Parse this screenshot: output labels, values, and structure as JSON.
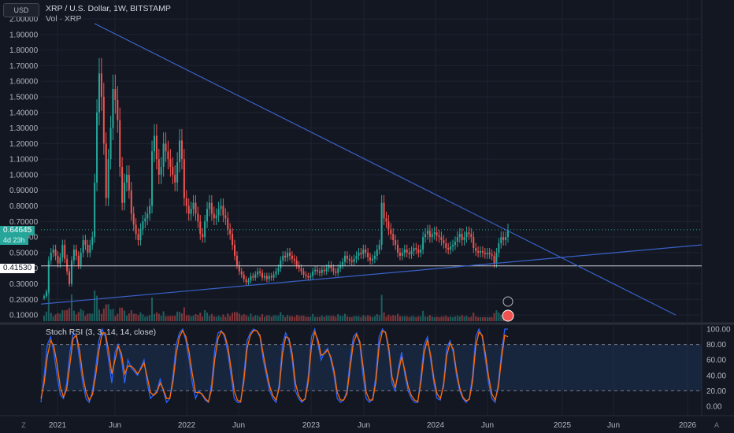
{
  "header": {
    "currency_button": "USD",
    "symbol_title": "XRP / U.S. Dollar, 1W, BITSTAMP",
    "volume_legend": "Vol · XRP",
    "rsi_legend": "Stoch RSI (3, 3, 14, 14, close)"
  },
  "price_labels": {
    "current_price": "0.64645",
    "countdown": "4d 23h",
    "horizontal_line_price": "0.41530"
  },
  "corner": {
    "z_label": "Z",
    "a_label": "A"
  },
  "colors": {
    "background": "#131722",
    "up": "#26a69a",
    "down": "#ef5350",
    "trendline": "#3861c6",
    "k_line": "#2962ff",
    "d_line": "#ff6d00",
    "band_fill": "#1e3a5f"
  },
  "chart_data": [
    {
      "type": "candlestick",
      "title": "XRP / U.S. Dollar, 1W, BITSTAMP",
      "ylim": [
        0.05,
        2.0
      ],
      "y_ticks": [
        "2.00000",
        "1.90000",
        "1.80000",
        "1.70000",
        "1.60000",
        "1.50000",
        "1.40000",
        "1.30000",
        "1.20000",
        "1.10000",
        "1.00000",
        "0.90000",
        "0.80000",
        "0.70000",
        "0.60000",
        "0.50000",
        "0.40000",
        "0.30000",
        "0.20000",
        "0.10000"
      ],
      "x_ticks": [
        "2021",
        "Jun",
        "2022",
        "Jun",
        "2023",
        "Jun",
        "2024",
        "Jun",
        "2025",
        "Jun",
        "2026"
      ],
      "close_series": [
        0.22,
        0.25,
        0.45,
        0.5,
        0.52,
        0.48,
        0.43,
        0.47,
        0.55,
        0.46,
        0.38,
        0.3,
        0.45,
        0.52,
        0.48,
        0.42,
        0.5,
        0.58,
        0.55,
        0.5,
        0.55,
        0.6,
        0.95,
        1.4,
        1.65,
        1.5,
        1.2,
        0.85,
        1.1,
        1.3,
        1.55,
        1.48,
        1.35,
        1.05,
        0.82,
        0.95,
        1.0,
        0.9,
        0.75,
        0.68,
        0.62,
        0.58,
        0.65,
        0.7,
        0.72,
        0.75,
        0.8,
        1.15,
        1.25,
        1.1,
        1.0,
        1.05,
        1.2,
        1.15,
        1.1,
        1.05,
        1.0,
        0.95,
        1.08,
        1.22,
        1.1,
        0.85,
        0.8,
        0.75,
        0.78,
        0.82,
        0.75,
        0.7,
        0.62,
        0.6,
        0.7,
        0.78,
        0.82,
        0.75,
        0.72,
        0.74,
        0.78,
        0.8,
        0.74,
        0.72,
        0.65,
        0.62,
        0.55,
        0.48,
        0.42,
        0.38,
        0.36,
        0.33,
        0.31,
        0.32,
        0.35,
        0.34,
        0.36,
        0.38,
        0.37,
        0.34,
        0.35,
        0.33,
        0.35,
        0.34,
        0.36,
        0.38,
        0.4,
        0.45,
        0.48,
        0.47,
        0.5,
        0.48,
        0.46,
        0.45,
        0.42,
        0.4,
        0.38,
        0.36,
        0.35,
        0.34,
        0.35,
        0.38,
        0.39,
        0.38,
        0.37,
        0.39,
        0.38,
        0.4,
        0.42,
        0.4,
        0.38,
        0.37,
        0.4,
        0.42,
        0.44,
        0.48,
        0.46,
        0.45,
        0.44,
        0.46,
        0.48,
        0.5,
        0.49,
        0.52,
        0.5,
        0.47,
        0.45,
        0.46,
        0.48,
        0.52,
        0.55,
        0.82,
        0.72,
        0.7,
        0.65,
        0.62,
        0.58,
        0.55,
        0.5,
        0.48,
        0.5,
        0.52,
        0.5,
        0.49,
        0.51,
        0.53,
        0.52,
        0.5,
        0.52,
        0.6,
        0.62,
        0.64,
        0.6,
        0.62,
        0.63,
        0.61,
        0.6,
        0.58,
        0.56,
        0.53,
        0.52,
        0.54,
        0.55,
        0.57,
        0.6,
        0.62,
        0.58,
        0.6,
        0.63,
        0.62,
        0.6,
        0.53,
        0.51,
        0.5,
        0.51,
        0.5,
        0.49,
        0.5,
        0.49,
        0.48,
        0.43,
        0.5,
        0.56,
        0.6,
        0.58,
        0.6,
        0.64645
      ],
      "horizontal_line": 0.4153,
      "trendline_upper": [
        [
          0.0,
          2.0
        ],
        [
          1.0,
          0.5
        ]
      ],
      "trendline_lower": [
        [
          0.0,
          0.17
        ],
        [
          1.0,
          0.55
        ]
      ]
    },
    {
      "type": "line",
      "title": "Stoch RSI (3, 3, 14, 14, close)",
      "ylim": [
        0,
        100
      ],
      "y_ticks": [
        "100.00",
        "80.00",
        "60.00",
        "40.00",
        "20.00",
        "0.00"
      ],
      "band": [
        20,
        80
      ],
      "series": [
        {
          "name": "",
          "values": [
            5,
            40,
            80,
            90,
            70,
            40,
            15,
            10,
            30,
            70,
            95,
            90,
            60,
            30,
            10,
            5,
            20,
            50,
            85,
            100,
            90,
            60,
            30,
            70,
            80,
            60,
            30,
            60,
            50,
            45,
            40,
            50,
            60,
            30,
            10,
            15,
            20,
            35,
            20,
            5,
            10,
            40,
            80,
            95,
            100,
            85,
            60,
            30,
            10,
            20,
            15,
            8,
            5,
            30,
            75,
            95,
            98,
            90,
            70,
            40,
            10,
            5,
            5,
            40,
            85,
            95,
            100,
            98,
            90,
            60,
            40,
            20,
            10,
            5,
            30,
            80,
            95,
            85,
            60,
            20,
            10,
            5,
            10,
            40,
            90,
            100,
            80,
            60,
            70,
            75,
            60,
            40,
            10,
            5,
            8,
            20,
            60,
            90,
            95,
            80,
            40,
            10,
            5,
            10,
            40,
            90,
            100,
            95,
            70,
            30,
            20,
            50,
            70,
            40,
            20,
            10,
            5,
            5,
            40,
            80,
            90,
            60,
            30,
            10,
            8,
            30,
            75,
            85,
            70,
            40,
            20,
            10,
            5,
            10,
            40,
            90,
            100,
            90,
            60,
            30,
            10,
            5,
            30,
            70,
            100,
            100
          ]
        },
        {
          "name": "",
          "values": [
            10,
            30,
            65,
            85,
            78,
            55,
            25,
            12,
            22,
            55,
            88,
            92,
            72,
            40,
            18,
            8,
            15,
            40,
            72,
            95,
            95,
            72,
            42,
            60,
            78,
            68,
            42,
            52,
            52,
            48,
            42,
            48,
            56,
            38,
            18,
            14,
            18,
            30,
            22,
            10,
            10,
            32,
            68,
            90,
            98,
            90,
            70,
            42,
            18,
            18,
            16,
            10,
            6,
            22,
            62,
            88,
            97,
            93,
            78,
            50,
            20,
            8,
            6,
            32,
            75,
            92,
            98,
            98,
            92,
            68,
            46,
            26,
            14,
            8,
            24,
            68,
            90,
            88,
            68,
            30,
            14,
            7,
            9,
            32,
            78,
            96,
            86,
            66,
            68,
            73,
            64,
            46,
            18,
            8,
            8,
            16,
            50,
            82,
            93,
            84,
            52,
            18,
            8,
            8,
            32,
            78,
            97,
            96,
            76,
            38,
            24,
            44,
            64,
            46,
            26,
            14,
            8,
            6,
            32,
            70,
            86,
            66,
            36,
            16,
            10,
            26,
            66,
            82,
            74,
            46,
            24,
            12,
            7,
            9,
            32,
            78,
            96,
            92,
            68,
            38,
            16,
            8,
            24,
            62,
            92,
            90
          ]
        }
      ]
    }
  ]
}
